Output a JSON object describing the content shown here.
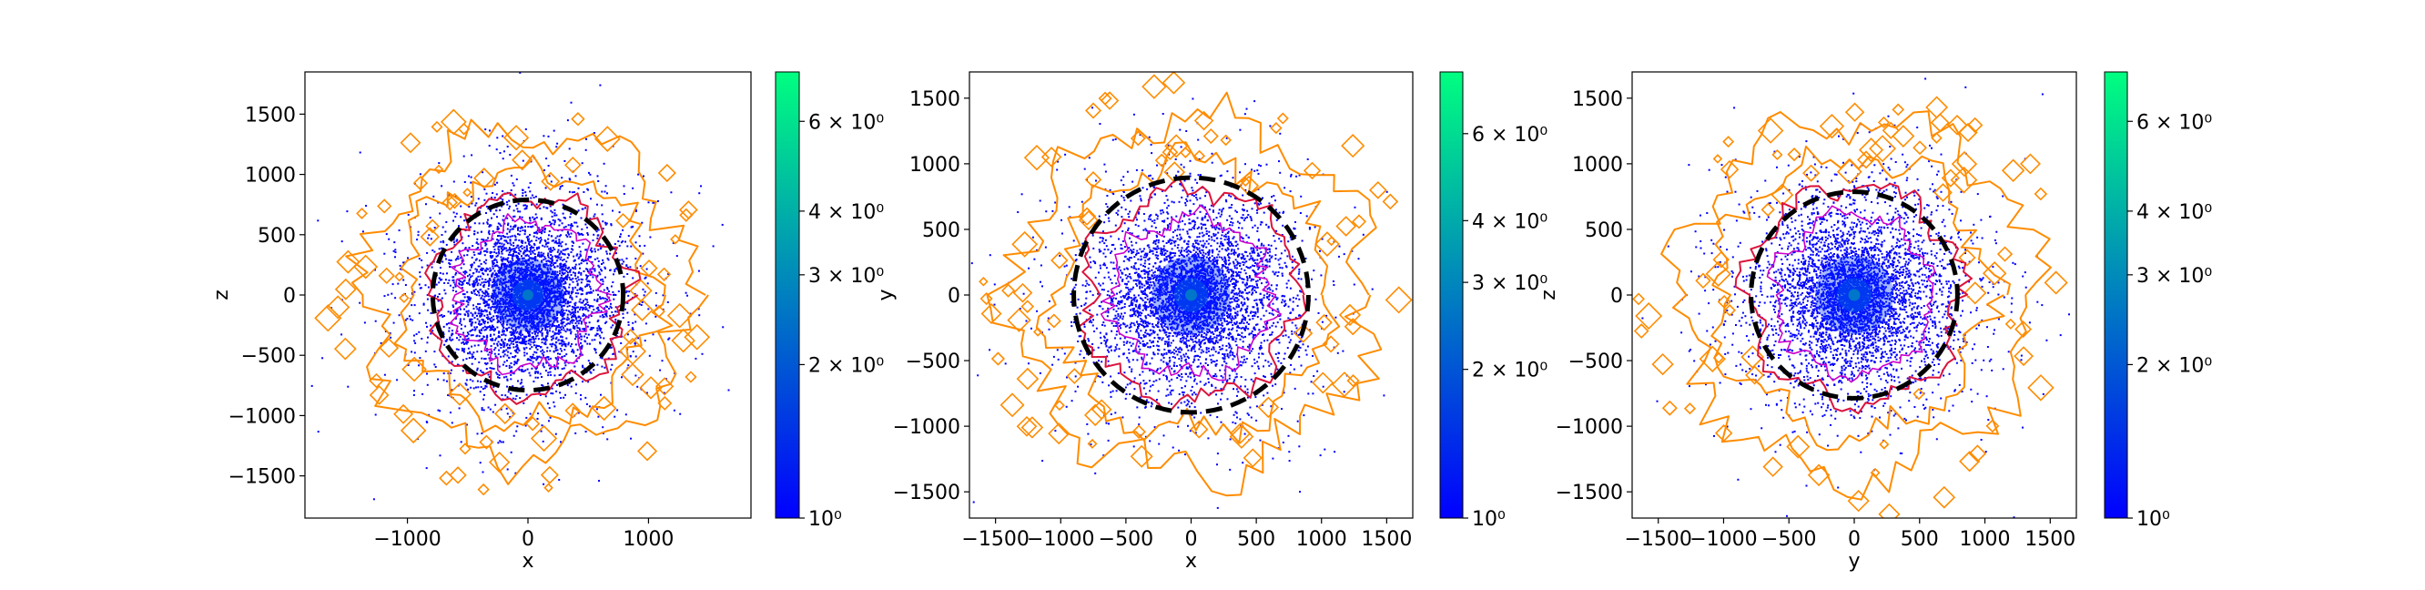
{
  "figure": {
    "background": "#ffffff",
    "colormap": [
      "#0000ff",
      "#00ff80"
    ],
    "point_color": "#0000ff",
    "contour_colors": [
      "#ff8c00",
      "#dc143c",
      "#cc00cc"
    ],
    "circle_color": "#000000"
  },
  "chart_data": [
    {
      "type": "scatter",
      "xlabel": "x",
      "ylabel": "z",
      "xlim": [
        -1850,
        1850
      ],
      "ylim": [
        -1850,
        1850
      ],
      "xticks": [
        -1000,
        0,
        1000
      ],
      "xtick_labels": [
        "−1000",
        "0",
        "1000"
      ],
      "yticks": [
        -1500,
        -1000,
        -500,
        0,
        500,
        1000,
        1500
      ],
      "ytick_labels": [
        "−1500",
        "−1000",
        "−500",
        "0",
        "500",
        "1000",
        "1500"
      ],
      "circle_radius": 790,
      "colorbar": {
        "scale": "log",
        "range": [
          1,
          7.5
        ],
        "ticks": [
          1,
          2,
          3,
          4,
          6
        ],
        "tick_labels": [
          "10⁰",
          "2 × 10⁰",
          "3 × 10⁰",
          "4 × 10⁰",
          "6 × 10⁰"
        ]
      }
    },
    {
      "type": "scatter",
      "xlabel": "x",
      "ylabel": "y",
      "xlim": [
        -1700,
        1700
      ],
      "ylim": [
        -1700,
        1700
      ],
      "xticks": [
        -1500,
        -1000,
        -500,
        0,
        500,
        1000,
        1500
      ],
      "xtick_labels": [
        "−1500",
        "−1000",
        "−500",
        "0",
        "500",
        "1000",
        "1500"
      ],
      "yticks": [
        -1500,
        -1000,
        -500,
        0,
        500,
        1000,
        1500
      ],
      "ytick_labels": [
        "−1500",
        "−1000",
        "−500",
        "0",
        "500",
        "1000",
        "1500"
      ],
      "circle_radius": 900,
      "colorbar": {
        "scale": "log",
        "range": [
          1,
          8
        ],
        "ticks": [
          1,
          2,
          3,
          4,
          6
        ],
        "tick_labels": [
          "10⁰",
          "2 × 10⁰",
          "3 × 10⁰",
          "4 × 10⁰",
          "6 × 10⁰"
        ]
      }
    },
    {
      "type": "scatter",
      "xlabel": "y",
      "ylabel": "z",
      "xlim": [
        -1700,
        1700
      ],
      "ylim": [
        -1700,
        1700
      ],
      "xticks": [
        -1500,
        -1000,
        -500,
        0,
        500,
        1000,
        1500
      ],
      "xtick_labels": [
        "−1500",
        "−1000",
        "−500",
        "0",
        "500",
        "1000",
        "1500"
      ],
      "yticks": [
        -1500,
        -1000,
        -500,
        0,
        500,
        1000,
        1500
      ],
      "ytick_labels": [
        "−1500",
        "−1000",
        "−500",
        "0",
        "500",
        "1000",
        "1500"
      ],
      "circle_radius": 790,
      "colorbar": {
        "scale": "log",
        "range": [
          1,
          7.5
        ],
        "ticks": [
          1,
          2,
          3,
          4,
          6
        ],
        "tick_labels": [
          "10⁰",
          "2 × 10⁰",
          "3 × 10⁰",
          "4 × 10⁰",
          "6 × 10⁰"
        ]
      }
    }
  ]
}
